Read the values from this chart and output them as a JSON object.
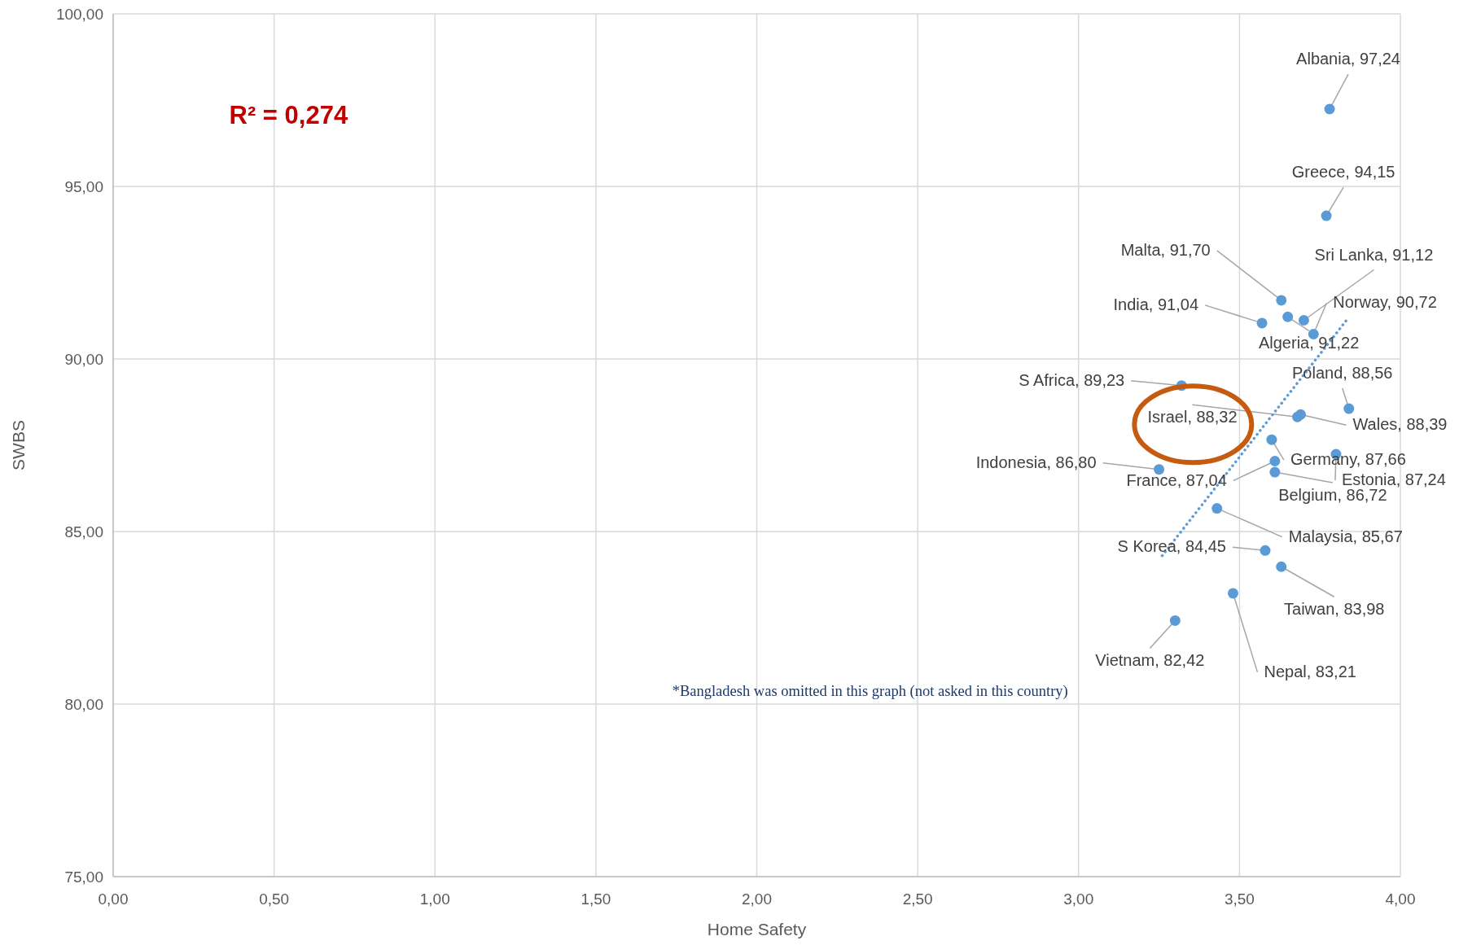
{
  "chart_data": {
    "type": "scatter",
    "xlabel": "Home Safety",
    "ylabel": "SWBS",
    "xlim": [
      0,
      4
    ],
    "ylim": [
      75,
      100
    ],
    "xticks": [
      {
        "value": 0,
        "label": "0,00"
      },
      {
        "value": 0.5,
        "label": "0,50"
      },
      {
        "value": 1,
        "label": "1,00"
      },
      {
        "value": 1.5,
        "label": "1,50"
      },
      {
        "value": 2,
        "label": "2,00"
      },
      {
        "value": 2.5,
        "label": "2,50"
      },
      {
        "value": 3,
        "label": "3,00"
      },
      {
        "value": 3.5,
        "label": "3,50"
      },
      {
        "value": 4,
        "label": "4,00"
      }
    ],
    "yticks": [
      {
        "value": 75,
        "label": "75,00"
      },
      {
        "value": 80,
        "label": "80,00"
      },
      {
        "value": 85,
        "label": "85,00"
      },
      {
        "value": 90,
        "label": "90,00"
      },
      {
        "value": 95,
        "label": "95,00"
      },
      {
        "value": 100,
        "label": "100,00"
      }
    ],
    "grid": true,
    "series": [
      {
        "marker": "circle",
        "color": "#5b9bd5",
        "x": [
          3.78,
          3.77,
          3.63,
          3.65,
          3.7,
          3.73,
          3.57,
          3.32,
          3.84,
          3.68,
          3.69,
          3.6,
          3.8,
          3.61,
          3.61,
          3.25,
          3.43,
          3.58,
          3.63,
          3.48,
          3.3
        ],
        "values": [
          97.24,
          94.15,
          91.7,
          91.22,
          91.12,
          90.72,
          91.04,
          89.23,
          88.56,
          88.32,
          88.39,
          87.66,
          87.24,
          87.04,
          86.72,
          86.8,
          85.67,
          84.45,
          83.98,
          83.21,
          82.42
        ],
        "value_labels": [
          "Albania, 97,24",
          "Greece, 94,15",
          "Malta, 91,70",
          "Algeria, 91,22",
          "Sri Lanka, 91,12",
          "Norway, 90,72",
          "India, 91,04",
          "S Africa, 89,23",
          "Poland, 88,56",
          "Israel, 88,32",
          "Wales, 88,39",
          "Germany, 87,66",
          "Estonia, 87,24",
          "France, 87,04",
          "Belgium, 86,72",
          "Indonesia, 86,80",
          "Malaysia, 85,67",
          "S Korea, 84,45",
          "Taiwan, 83,98",
          "Nepal, 83,21",
          "Vietnam, 82,42"
        ]
      },
      {
        "type": "line",
        "color": "#5b9bd5",
        "line_style": "dotted",
        "x": [
          3.26,
          3.84
        ],
        "values": [
          84.3,
          91.21
        ]
      }
    ],
    "annotations": [
      "R² = 0,274",
      "*Bangladesh was omitted in this graph (not asked in this country)"
    ]
  }
}
